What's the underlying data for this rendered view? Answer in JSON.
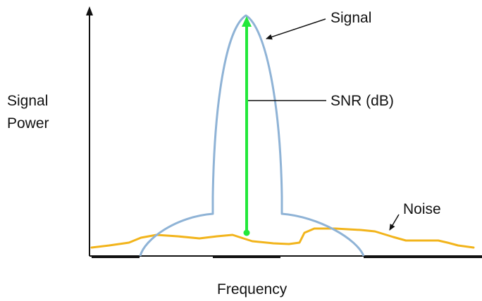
{
  "diagram": {
    "y_axis_label_line1": "Signal",
    "y_axis_label_line2": "Power",
    "x_axis_label": "Frequency",
    "signal_label": "Signal",
    "snr_label": "SNR (dB)",
    "noise_label": "Noise"
  },
  "colors": {
    "signal_curve": "#8fb3d6",
    "noise_curve": "#f2b41b",
    "snr_arrow": "#22e83a",
    "axes": "#111111",
    "label_text": "#111111"
  }
}
